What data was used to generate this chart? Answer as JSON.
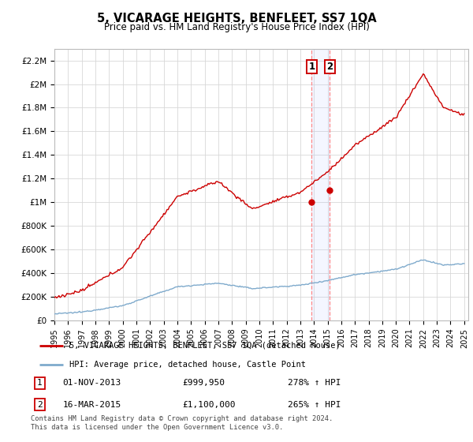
{
  "title": "5, VICARAGE HEIGHTS, BENFLEET, SS7 1QA",
  "subtitle": "Price paid vs. HM Land Registry's House Price Index (HPI)",
  "legend_line1": "5, VICARAGE HEIGHTS, BENFLEET, SS7 1QA (detached house)",
  "legend_line2": "HPI: Average price, detached house, Castle Point",
  "footer": "Contains HM Land Registry data © Crown copyright and database right 2024.\nThis data is licensed under the Open Government Licence v3.0.",
  "transaction1_date": "01-NOV-2013",
  "transaction1_price": "£999,950",
  "transaction1_hpi": "278% ↑ HPI",
  "transaction2_date": "16-MAR-2015",
  "transaction2_price": "£1,100,000",
  "transaction2_hpi": "265% ↑ HPI",
  "hpi_color": "#7faacc",
  "price_color": "#cc0000",
  "vline_color": "#ff8888",
  "ylim_max": 2300000,
  "yticks": [
    0,
    200000,
    400000,
    600000,
    800000,
    1000000,
    1200000,
    1400000,
    1600000,
    1800000,
    2000000,
    2200000
  ],
  "ytick_labels": [
    "£0",
    "£200K",
    "£400K",
    "£600K",
    "£800K",
    "£1M",
    "£1.2M",
    "£1.4M",
    "£1.6M",
    "£1.8M",
    "£2M",
    "£2.2M"
  ],
  "t1_year": 2013.833,
  "t1_price": 999950,
  "t2_year": 2015.167,
  "t2_price": 1100000
}
